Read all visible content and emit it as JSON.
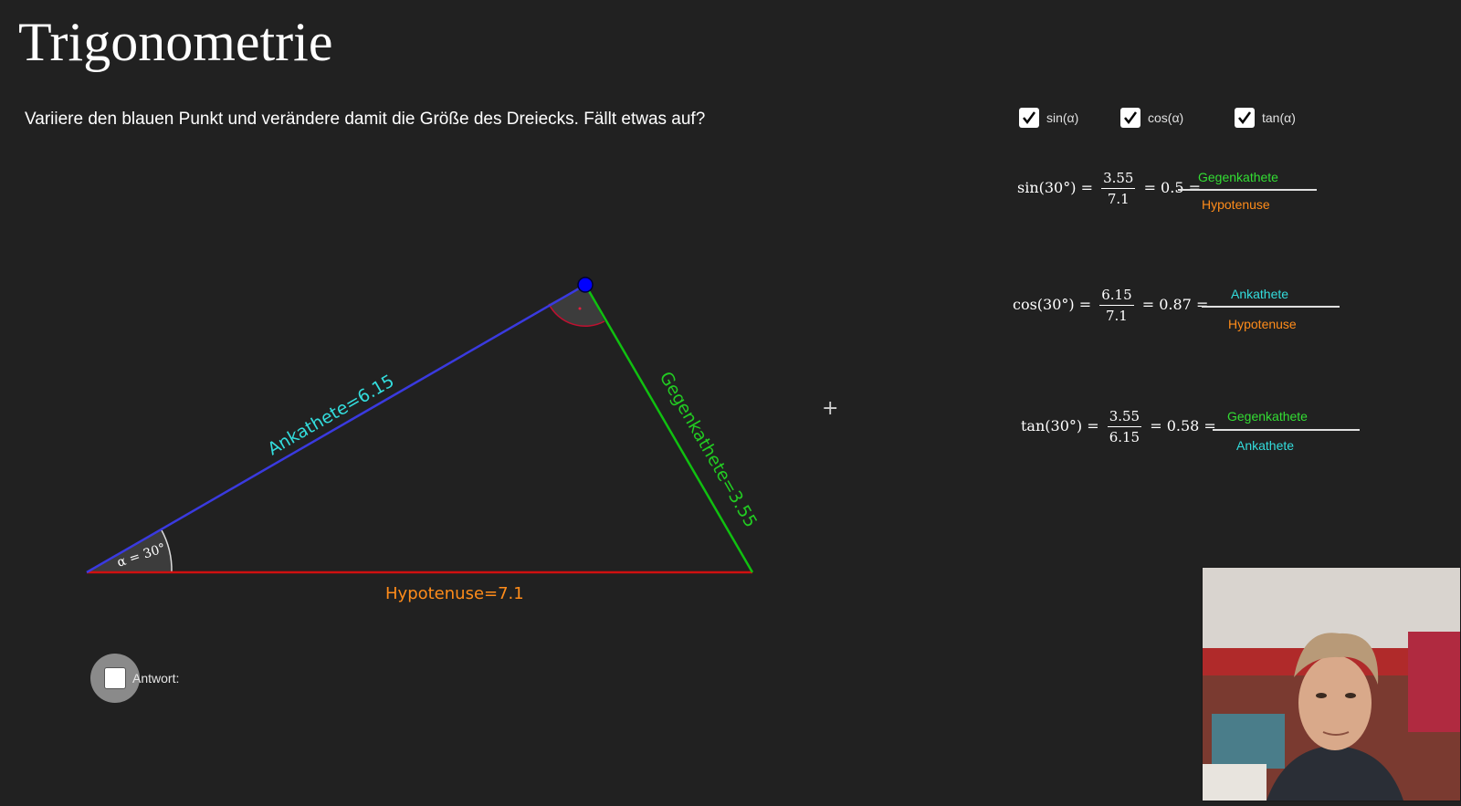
{
  "title": "Trigonometrie",
  "instruction": "Variiere den blauen Punkt und verändere damit die Größe des Dreiecks. Fällt etwas auf?",
  "checkboxes": [
    {
      "label": "sin(α)",
      "checked": true
    },
    {
      "label": "cos(α)",
      "checked": true
    },
    {
      "label": "tan(α)",
      "checked": true
    }
  ],
  "triangle": {
    "angle_label": "α = 30°",
    "adjacent_label": "Ankathete=6.15",
    "opposite_label": "Gegenkathete=3.55",
    "hypotenuse_label": "Hypotenuse=7.1",
    "colors": {
      "adjacent": "#3a3adf",
      "opposite": "#10c010",
      "hypotenuse": "#d01010",
      "point": "#0000ff",
      "adjacent_text": "#33dddd",
      "opposite_text": "#22cc22",
      "hypotenuse_text": "#ff8c1a"
    }
  },
  "formulas": {
    "sin": {
      "lhs": "sin(30°) =",
      "num": "3.55",
      "den": "7.1",
      "result": "= 0.5 =",
      "word_num": "Gegenkathete",
      "word_den": "Hypotenuse"
    },
    "cos": {
      "lhs": "cos(30°) =",
      "num": "6.15",
      "den": "7.1",
      "result": "= 0.87 =",
      "word_num": "Ankathete",
      "word_den": "Hypotenuse"
    },
    "tan": {
      "lhs": "tan(30°) =",
      "num": "3.55",
      "den": "6.15",
      "result": "= 0.58 =",
      "word_num": "Gegenkathete",
      "word_den": "Ankathete"
    }
  },
  "word_colors": {
    "Gegenkathete": "#33dd33",
    "Hypotenuse": "#ff8c1a",
    "Ankathete": "#33dddd"
  },
  "answer": {
    "label": "Antwort:",
    "checked": false
  },
  "crosshair": "+"
}
